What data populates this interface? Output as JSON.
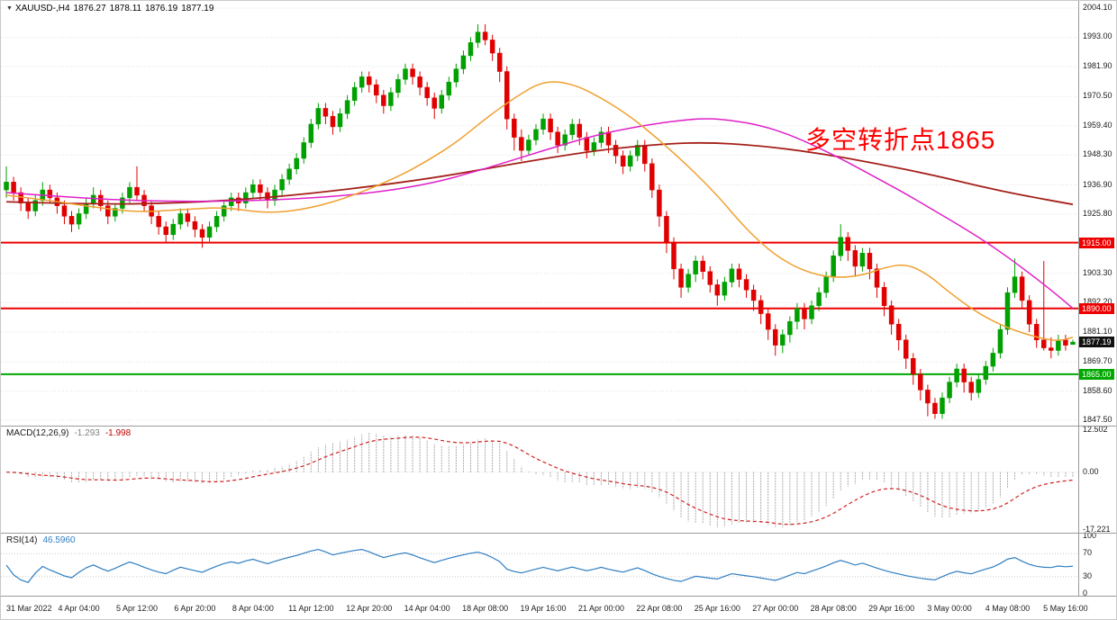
{
  "header": {
    "collapse_icon": "▼",
    "symbol": "XAUUSD-,H4",
    "open": "1876.27",
    "high": "1878.11",
    "low": "1876.19",
    "close": "1877.19"
  },
  "annotation": {
    "text": "多空转折点1865",
    "color": "#ff0000"
  },
  "chart_data": {
    "type": "candlestick",
    "title": "XAUUSD- H4",
    "grid": "dotted-horizontal",
    "candle_colors": {
      "bull": "#00A000",
      "bear": "#E00000"
    },
    "price_axis": {
      "min": 1847.5,
      "max": 2004.1,
      "ticks": [
        2004.1,
        1993.0,
        1981.9,
        1970.5,
        1959.4,
        1948.3,
        1936.9,
        1925.8,
        1903.3,
        1892.2,
        1881.1,
        1869.7,
        1858.6,
        1847.5
      ]
    },
    "x_labels": [
      "31 Mar 2022",
      "4 Apr 04:00",
      "5 Apr 12:00",
      "6 Apr 20:00",
      "8 Apr 04:00",
      "11 Apr 12:00",
      "12 Apr 20:00",
      "14 Apr 04:00",
      "18 Apr 08:00",
      "19 Apr 16:00",
      "21 Apr 00:00",
      "22 Apr 08:00",
      "25 Apr 16:00",
      "27 Apr 00:00",
      "28 Apr 08:00",
      "29 Apr 16:00",
      "3 May 00:00",
      "4 May 08:00",
      "5 May 16:00"
    ],
    "x_label_candle_interval": 8,
    "candles": [
      [
        1935,
        1944,
        1932,
        1938
      ],
      [
        1938,
        1940,
        1931,
        1934
      ],
      [
        1934,
        1936,
        1927,
        1930
      ],
      [
        1930,
        1932,
        1924,
        1927
      ],
      [
        1927,
        1933,
        1925,
        1931
      ],
      [
        1931,
        1938,
        1929,
        1935
      ],
      [
        1935,
        1937,
        1930,
        1932
      ],
      [
        1932,
        1934,
        1926,
        1929
      ],
      [
        1929,
        1931,
        1922,
        1925
      ],
      [
        1925,
        1927,
        1919,
        1922
      ],
      [
        1922,
        1928,
        1920,
        1926
      ],
      [
        1926,
        1932,
        1924,
        1930
      ],
      [
        1930,
        1936,
        1928,
        1933
      ],
      [
        1933,
        1935,
        1927,
        1929
      ],
      [
        1929,
        1931,
        1922,
        1925
      ],
      [
        1925,
        1930,
        1923,
        1928
      ],
      [
        1928,
        1934,
        1926,
        1932
      ],
      [
        1932,
        1938,
        1930,
        1936
      ],
      [
        1936,
        1944,
        1931,
        1933
      ],
      [
        1933,
        1935,
        1927,
        1929
      ],
      [
        1929,
        1931,
        1922,
        1925
      ],
      [
        1925,
        1927,
        1918,
        1921
      ],
      [
        1921,
        1923,
        1915,
        1918
      ],
      [
        1918,
        1924,
        1916,
        1922
      ],
      [
        1922,
        1928,
        1920,
        1926
      ],
      [
        1926,
        1928,
        1921,
        1923
      ],
      [
        1923,
        1925,
        1917,
        1920
      ],
      [
        1920,
        1922,
        1913,
        1917
      ],
      [
        1917,
        1923,
        1915,
        1921
      ],
      [
        1921,
        1927,
        1919,
        1925
      ],
      [
        1925,
        1931,
        1923,
        1929
      ],
      [
        1929,
        1934,
        1927,
        1932
      ],
      [
        1932,
        1934,
        1927,
        1930
      ],
      [
        1930,
        1936,
        1928,
        1934
      ],
      [
        1934,
        1939,
        1932,
        1937
      ],
      [
        1937,
        1939,
        1931,
        1934
      ],
      [
        1934,
        1936,
        1928,
        1931
      ],
      [
        1931,
        1937,
        1929,
        1935
      ],
      [
        1935,
        1941,
        1933,
        1939
      ],
      [
        1939,
        1945,
        1937,
        1943
      ],
      [
        1943,
        1949,
        1941,
        1947
      ],
      [
        1947,
        1955,
        1945,
        1953
      ],
      [
        1953,
        1962,
        1951,
        1960
      ],
      [
        1960,
        1968,
        1958,
        1966
      ],
      [
        1966,
        1968,
        1960,
        1963
      ],
      [
        1963,
        1965,
        1956,
        1959
      ],
      [
        1959,
        1966,
        1957,
        1964
      ],
      [
        1964,
        1971,
        1962,
        1969
      ],
      [
        1969,
        1976,
        1967,
        1974
      ],
      [
        1974,
        1980,
        1972,
        1978
      ],
      [
        1978,
        1980,
        1972,
        1975
      ],
      [
        1975,
        1977,
        1968,
        1971
      ],
      [
        1971,
        1973,
        1964,
        1967
      ],
      [
        1967,
        1974,
        1965,
        1972
      ],
      [
        1972,
        1979,
        1970,
        1977
      ],
      [
        1977,
        1983,
        1975,
        1981
      ],
      [
        1981,
        1983,
        1975,
        1978
      ],
      [
        1978,
        1980,
        1971,
        1974
      ],
      [
        1974,
        1976,
        1967,
        1970
      ],
      [
        1970,
        1972,
        1962,
        1966
      ],
      [
        1966,
        1973,
        1964,
        1971
      ],
      [
        1971,
        1978,
        1969,
        1976
      ],
      [
        1976,
        1983,
        1974,
        1981
      ],
      [
        1981,
        1988,
        1979,
        1986
      ],
      [
        1986,
        1993,
        1984,
        1991
      ],
      [
        1991,
        1998,
        1989,
        1995
      ],
      [
        1995,
        1998,
        1990,
        1992
      ],
      [
        1992,
        1994,
        1984,
        1987
      ],
      [
        1987,
        1989,
        1976,
        1980
      ],
      [
        1980,
        1982,
        1958,
        1962
      ],
      [
        1962,
        1964,
        1950,
        1955
      ],
      [
        1955,
        1958,
        1946,
        1950
      ],
      [
        1950,
        1956,
        1948,
        1954
      ],
      [
        1954,
        1960,
        1952,
        1958
      ],
      [
        1958,
        1964,
        1956,
        1962
      ],
      [
        1962,
        1964,
        1954,
        1957
      ],
      [
        1957,
        1959,
        1949,
        1952
      ],
      [
        1952,
        1958,
        1950,
        1956
      ],
      [
        1956,
        1962,
        1954,
        1960
      ],
      [
        1960,
        1962,
        1952,
        1955
      ],
      [
        1955,
        1957,
        1947,
        1950
      ],
      [
        1950,
        1955,
        1948,
        1953
      ],
      [
        1953,
        1959,
        1951,
        1957
      ],
      [
        1957,
        1959,
        1949,
        1952
      ],
      [
        1952,
        1954,
        1945,
        1948
      ],
      [
        1948,
        1950,
        1941,
        1944
      ],
      [
        1944,
        1950,
        1942,
        1948
      ],
      [
        1948,
        1954,
        1946,
        1952
      ],
      [
        1952,
        1954,
        1942,
        1945
      ],
      [
        1945,
        1947,
        1932,
        1935
      ],
      [
        1935,
        1937,
        1921,
        1925
      ],
      [
        1925,
        1927,
        1911,
        1915
      ],
      [
        1915,
        1917,
        1901,
        1905
      ],
      [
        1905,
        1907,
        1894,
        1898
      ],
      [
        1898,
        1905,
        1896,
        1903
      ],
      [
        1903,
        1910,
        1900,
        1908
      ],
      [
        1908,
        1910,
        1901,
        1904
      ],
      [
        1904,
        1906,
        1896,
        1899
      ],
      [
        1899,
        1901,
        1891,
        1895
      ],
      [
        1895,
        1902,
        1893,
        1900
      ],
      [
        1900,
        1907,
        1898,
        1905
      ],
      [
        1905,
        1907,
        1898,
        1901
      ],
      [
        1901,
        1903,
        1894,
        1897
      ],
      [
        1897,
        1899,
        1889,
        1893
      ],
      [
        1893,
        1895,
        1884,
        1888
      ],
      [
        1888,
        1890,
        1878,
        1882
      ],
      [
        1882,
        1884,
        1872,
        1876
      ],
      [
        1876,
        1882,
        1873,
        1880
      ],
      [
        1880,
        1887,
        1877,
        1885
      ],
      [
        1885,
        1892,
        1882,
        1890
      ],
      [
        1890,
        1892,
        1882,
        1886
      ],
      [
        1886,
        1893,
        1884,
        1891
      ],
      [
        1891,
        1898,
        1889,
        1896
      ],
      [
        1896,
        1904,
        1894,
        1902
      ],
      [
        1902,
        1912,
        1900,
        1910
      ],
      [
        1910,
        1922,
        1908,
        1917
      ],
      [
        1917,
        1919,
        1908,
        1912
      ],
      [
        1912,
        1914,
        1902,
        1906
      ],
      [
        1906,
        1913,
        1904,
        1911
      ],
      [
        1911,
        1913,
        1901,
        1905
      ],
      [
        1905,
        1907,
        1894,
        1898
      ],
      [
        1898,
        1900,
        1887,
        1891
      ],
      [
        1891,
        1893,
        1880,
        1884
      ],
      [
        1884,
        1886,
        1874,
        1878
      ],
      [
        1878,
        1880,
        1867,
        1871
      ],
      [
        1871,
        1873,
        1861,
        1865
      ],
      [
        1865,
        1867,
        1855,
        1859
      ],
      [
        1859,
        1861,
        1849,
        1854
      ],
      [
        1854,
        1856,
        1848,
        1850
      ],
      [
        1850,
        1858,
        1848,
        1856
      ],
      [
        1856,
        1864,
        1854,
        1862
      ],
      [
        1862,
        1869,
        1860,
        1867
      ],
      [
        1867,
        1869,
        1858,
        1862
      ],
      [
        1862,
        1864,
        1855,
        1858
      ],
      [
        1858,
        1865,
        1856,
        1863
      ],
      [
        1863,
        1870,
        1861,
        1868
      ],
      [
        1868,
        1875,
        1866,
        1873
      ],
      [
        1873,
        1884,
        1871,
        1882
      ],
      [
        1882,
        1898,
        1880,
        1896
      ],
      [
        1896,
        1909,
        1894,
        1902
      ],
      [
        1902,
        1904,
        1890,
        1893
      ],
      [
        1893,
        1895,
        1881,
        1884
      ],
      [
        1884,
        1886,
        1875,
        1878
      ],
      [
        1878,
        1908,
        1874,
        1875
      ],
      [
        1875,
        1879,
        1871,
        1874
      ],
      [
        1874,
        1880,
        1872,
        1878
      ],
      [
        1878,
        1880,
        1874,
        1876
      ],
      [
        1876.27,
        1878.11,
        1876.19,
        1877.19
      ]
    ],
    "moving_averages": [
      {
        "name": "slow-ma",
        "color": "#A52019",
        "width": 1.8,
        "points": [
          [
            0,
            1930.5
          ],
          [
            12,
            1929.5
          ],
          [
            24,
            1930
          ],
          [
            36,
            1932
          ],
          [
            48,
            1935.5
          ],
          [
            60,
            1940
          ],
          [
            70,
            1945
          ],
          [
            80,
            1949.5
          ],
          [
            88,
            1952
          ],
          [
            96,
            1953.2
          ],
          [
            104,
            1951.8
          ],
          [
            112,
            1949
          ],
          [
            120,
            1945
          ],
          [
            128,
            1940.5
          ],
          [
            134,
            1936.5
          ],
          [
            140,
            1933
          ],
          [
            147,
            1929.5
          ]
        ]
      },
      {
        "name": "mid-ma",
        "color": "#E020C8",
        "width": 1.5,
        "points": [
          [
            0,
            1934
          ],
          [
            12,
            1931.5
          ],
          [
            24,
            1930.5
          ],
          [
            36,
            1931
          ],
          [
            48,
            1933
          ],
          [
            58,
            1937
          ],
          [
            66,
            1943
          ],
          [
            74,
            1950
          ],
          [
            82,
            1956.5
          ],
          [
            90,
            1960.5
          ],
          [
            96,
            1962.3
          ],
          [
            100,
            1961.5
          ],
          [
            104,
            1959.5
          ],
          [
            108,
            1956
          ],
          [
            112,
            1951
          ],
          [
            116,
            1945.5
          ],
          [
            120,
            1939.5
          ],
          [
            124,
            1933.5
          ],
          [
            128,
            1927
          ],
          [
            132,
            1920.5
          ],
          [
            136,
            1913.5
          ],
          [
            140,
            1905.5
          ],
          [
            144,
            1897
          ],
          [
            147,
            1890
          ]
        ]
      },
      {
        "name": "fast-ma",
        "color": "#F0A030",
        "width": 1.5,
        "points": [
          [
            0,
            1933
          ],
          [
            6,
            1931
          ],
          [
            12,
            1928.5
          ],
          [
            18,
            1926.5
          ],
          [
            24,
            1927.5
          ],
          [
            30,
            1928.5
          ],
          [
            36,
            1926
          ],
          [
            42,
            1928
          ],
          [
            48,
            1933
          ],
          [
            54,
            1940
          ],
          [
            58,
            1946
          ],
          [
            62,
            1953
          ],
          [
            66,
            1962
          ],
          [
            70,
            1970
          ],
          [
            74,
            1976.5
          ],
          [
            78,
            1975.5
          ],
          [
            82,
            1970
          ],
          [
            86,
            1963
          ],
          [
            90,
            1954
          ],
          [
            94,
            1944
          ],
          [
            98,
            1933
          ],
          [
            102,
            1920
          ],
          [
            106,
            1910
          ],
          [
            110,
            1904
          ],
          [
            114,
            1901.5
          ],
          [
            118,
            1902.5
          ],
          [
            121,
            1905.5
          ],
          [
            124,
            1907
          ],
          [
            127,
            1903
          ],
          [
            130,
            1896
          ],
          [
            134,
            1888
          ],
          [
            138,
            1882.5
          ],
          [
            142,
            1879
          ],
          [
            145,
            1877.5
          ],
          [
            147,
            1879
          ]
        ]
      }
    ],
    "hlines": [
      {
        "price": 1915.0,
        "color": "#EE0000",
        "label": "1915.00"
      },
      {
        "price": 1890.0,
        "color": "#EE0000",
        "label": "1890.00"
      },
      {
        "price": 1865.0,
        "color": "#00A800",
        "label": "1865.00"
      }
    ],
    "price_marker": {
      "price": 1877.19,
      "label": "1877.19",
      "bg": "#111111"
    },
    "macd": {
      "label": "MACD(12,26,9)",
      "value1": "-1.293",
      "value2": "-1.998",
      "fast": 12,
      "slow": 26,
      "signal": 9,
      "axis": {
        "max": 12.502,
        "min": -17.221,
        "tick_labels": [
          "12.502",
          "0.00",
          "-17.221"
        ],
        "tick_values": [
          12.502,
          0,
          -17.221
        ]
      },
      "histogram_color": "#ABABAB",
      "signal_color": "#D02020"
    },
    "rsi": {
      "label": "RSI(14)",
      "value": "46.5960",
      "period": 14,
      "levels": [
        70,
        30
      ],
      "axis_labels": [
        "100",
        "70",
        "30",
        "0"
      ],
      "axis_values": [
        100,
        70,
        30,
        0
      ],
      "line_color": "#2E7EC2"
    }
  }
}
